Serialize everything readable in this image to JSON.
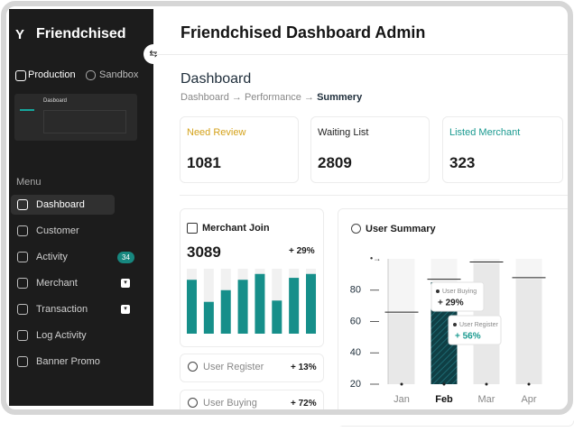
{
  "sidebar": {
    "brand": "Friendchised",
    "tabs": [
      "Production",
      "Sandbox"
    ],
    "preview_title": "Dasboard",
    "menu_label": "Menu",
    "menu": [
      {
        "label": "Dashboard"
      },
      {
        "label": "Customer"
      },
      {
        "label": "Activity",
        "badge": 34
      },
      {
        "label": "Merchant"
      },
      {
        "label": "Transaction"
      },
      {
        "label": "Log Activity"
      },
      {
        "label": "Banner Promo"
      }
    ]
  },
  "header": {
    "title": "Friendchised Dashboard Admin"
  },
  "page": {
    "title": "Dashboard",
    "breadcrumb": [
      "Dashboard",
      "Performance",
      "Summery"
    ]
  },
  "stats": [
    {
      "label": "Need Review",
      "value": 1081,
      "color": "#d4a21a"
    },
    {
      "label": "Waiting List",
      "value": 2809,
      "color": "#222222"
    },
    {
      "label": "Listed Merchant",
      "value": 323,
      "color": "#1a9a90"
    }
  ],
  "merchant_join": {
    "title": "Merchant Join",
    "total": 3089,
    "change": "+ 29%",
    "chart_data": {
      "type": "bar",
      "categories": [
        null,
        null,
        null,
        null,
        null,
        null,
        null,
        null
      ],
      "values": [
        83,
        49,
        67,
        83,
        92,
        51,
        86,
        92
      ],
      "ylim": [
        0,
        100
      ],
      "color": "#168f8a",
      "background_color": "#f1f1f1"
    }
  },
  "mini_stats": [
    {
      "label": "User Register",
      "change": "+ 13%"
    },
    {
      "label": "User Buying",
      "change": "+ 72%"
    }
  ],
  "user_summary": {
    "title": "User Summary",
    "chart_data": {
      "type": "bar",
      "categories": [
        "Jan",
        "Feb",
        "Mar",
        "Apr"
      ],
      "values": [
        65,
        85,
        97,
        87
      ],
      "target_values": [
        66,
        87,
        98,
        88
      ],
      "bar_colors": [
        "#e8e8e8",
        "#0f3f45",
        "#e8e8e8",
        "#e8e8e8"
      ],
      "ylim": [
        20,
        100
      ],
      "yticks": [
        20,
        40,
        60,
        80
      ],
      "tooltips": [
        {
          "title": "User Buying",
          "value": "+ 29%",
          "color": "#222222"
        },
        {
          "title": "User Register",
          "value": "+ 56%",
          "color": "#1a9a90"
        }
      ]
    }
  }
}
